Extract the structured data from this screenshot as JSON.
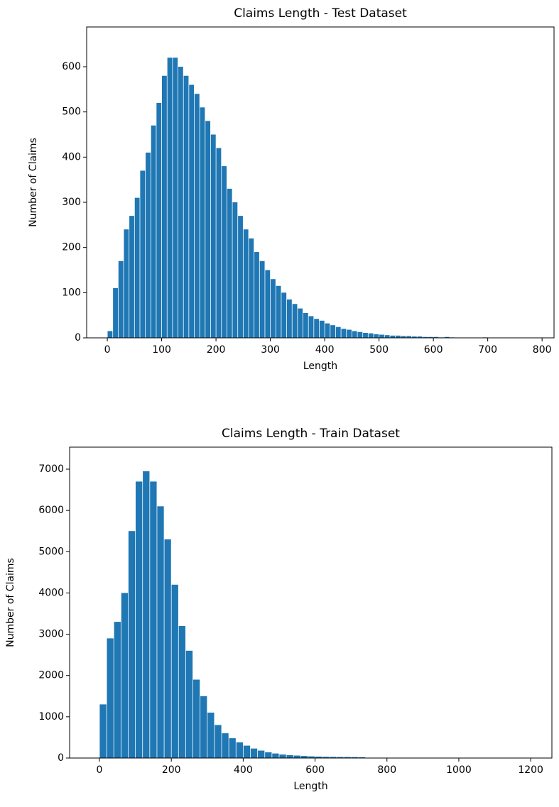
{
  "chart_data": [
    {
      "type": "histogram",
      "title": "Claims Length - Test Dataset",
      "x_label": "Length",
      "y_label": "Number of Claims",
      "color": "#1f77b4",
      "bins": [
        0,
        10,
        20,
        30,
        40,
        50,
        60,
        70,
        80,
        90,
        100,
        110,
        120,
        130,
        140,
        150,
        160,
        170,
        180,
        190,
        200,
        210,
        220,
        230,
        240,
        250,
        260,
        270,
        280,
        290,
        300,
        310,
        320,
        330,
        340,
        350,
        360,
        370,
        380,
        390,
        400,
        410,
        420,
        430,
        440,
        450,
        460,
        470,
        480,
        490,
        500,
        510,
        520,
        530,
        540,
        550,
        560,
        570,
        580,
        590,
        600,
        610,
        620,
        630,
        640,
        650,
        660,
        670,
        680,
        690,
        700,
        710,
        720,
        730,
        740,
        750,
        760,
        770,
        780,
        790,
        800
      ],
      "values": [
        15,
        110,
        170,
        240,
        270,
        310,
        370,
        410,
        470,
        520,
        580,
        620,
        620,
        600,
        580,
        560,
        540,
        510,
        480,
        450,
        420,
        380,
        330,
        300,
        270,
        240,
        220,
        190,
        170,
        150,
        130,
        115,
        100,
        85,
        75,
        65,
        55,
        48,
        42,
        38,
        32,
        28,
        24,
        20,
        18,
        15,
        13,
        11,
        10,
        8,
        7,
        6,
        5,
        5,
        4,
        4,
        3,
        3,
        2,
        2,
        2,
        1,
        2,
        1,
        0,
        0,
        0,
        0,
        0,
        1,
        0,
        0,
        0,
        0,
        0,
        0,
        0,
        0,
        0,
        0
      ],
      "xlim": [
        -38,
        822
      ],
      "ylim": [
        0,
        688
      ],
      "xticks": [
        0,
        100,
        200,
        300,
        400,
        500,
        600,
        700,
        800
      ],
      "yticks": [
        0,
        100,
        200,
        300,
        400,
        500,
        600
      ]
    },
    {
      "type": "histogram",
      "title": "Claims Length - Train Dataset",
      "x_label": "Length",
      "y_label": "Number of Claims",
      "color": "#1f77b4",
      "bins": [
        0,
        20,
        40,
        60,
        80,
        100,
        120,
        140,
        160,
        180,
        200,
        220,
        240,
        260,
        280,
        300,
        320,
        340,
        360,
        380,
        400,
        420,
        440,
        460,
        480,
        500,
        520,
        540,
        560,
        580,
        600,
        620,
        640,
        660,
        680,
        700,
        720,
        740,
        760,
        780,
        800,
        820,
        840,
        860,
        880,
        900,
        920,
        940,
        960,
        980,
        1000,
        1020,
        1040,
        1060,
        1080,
        1100,
        1120,
        1140,
        1160,
        1180,
        1200
      ],
      "values": [
        1300,
        2900,
        3300,
        4000,
        5500,
        6700,
        6950,
        6700,
        6100,
        5300,
        4200,
        3200,
        2600,
        1900,
        1500,
        1100,
        800,
        600,
        480,
        380,
        300,
        230,
        180,
        140,
        110,
        85,
        70,
        60,
        50,
        40,
        35,
        30,
        28,
        25,
        25,
        22,
        20,
        3,
        2,
        1,
        1,
        1,
        0,
        0,
        1,
        0,
        0,
        0,
        0,
        0,
        0,
        0,
        0,
        0,
        0,
        0,
        0,
        0,
        0,
        0
      ],
      "xlim": [
        -83,
        1259
      ],
      "ylim": [
        0,
        7533
      ],
      "xticks": [
        0,
        200,
        400,
        600,
        800,
        1000,
        1200
      ],
      "yticks": [
        0,
        1000,
        2000,
        3000,
        4000,
        5000,
        6000,
        7000
      ]
    }
  ]
}
